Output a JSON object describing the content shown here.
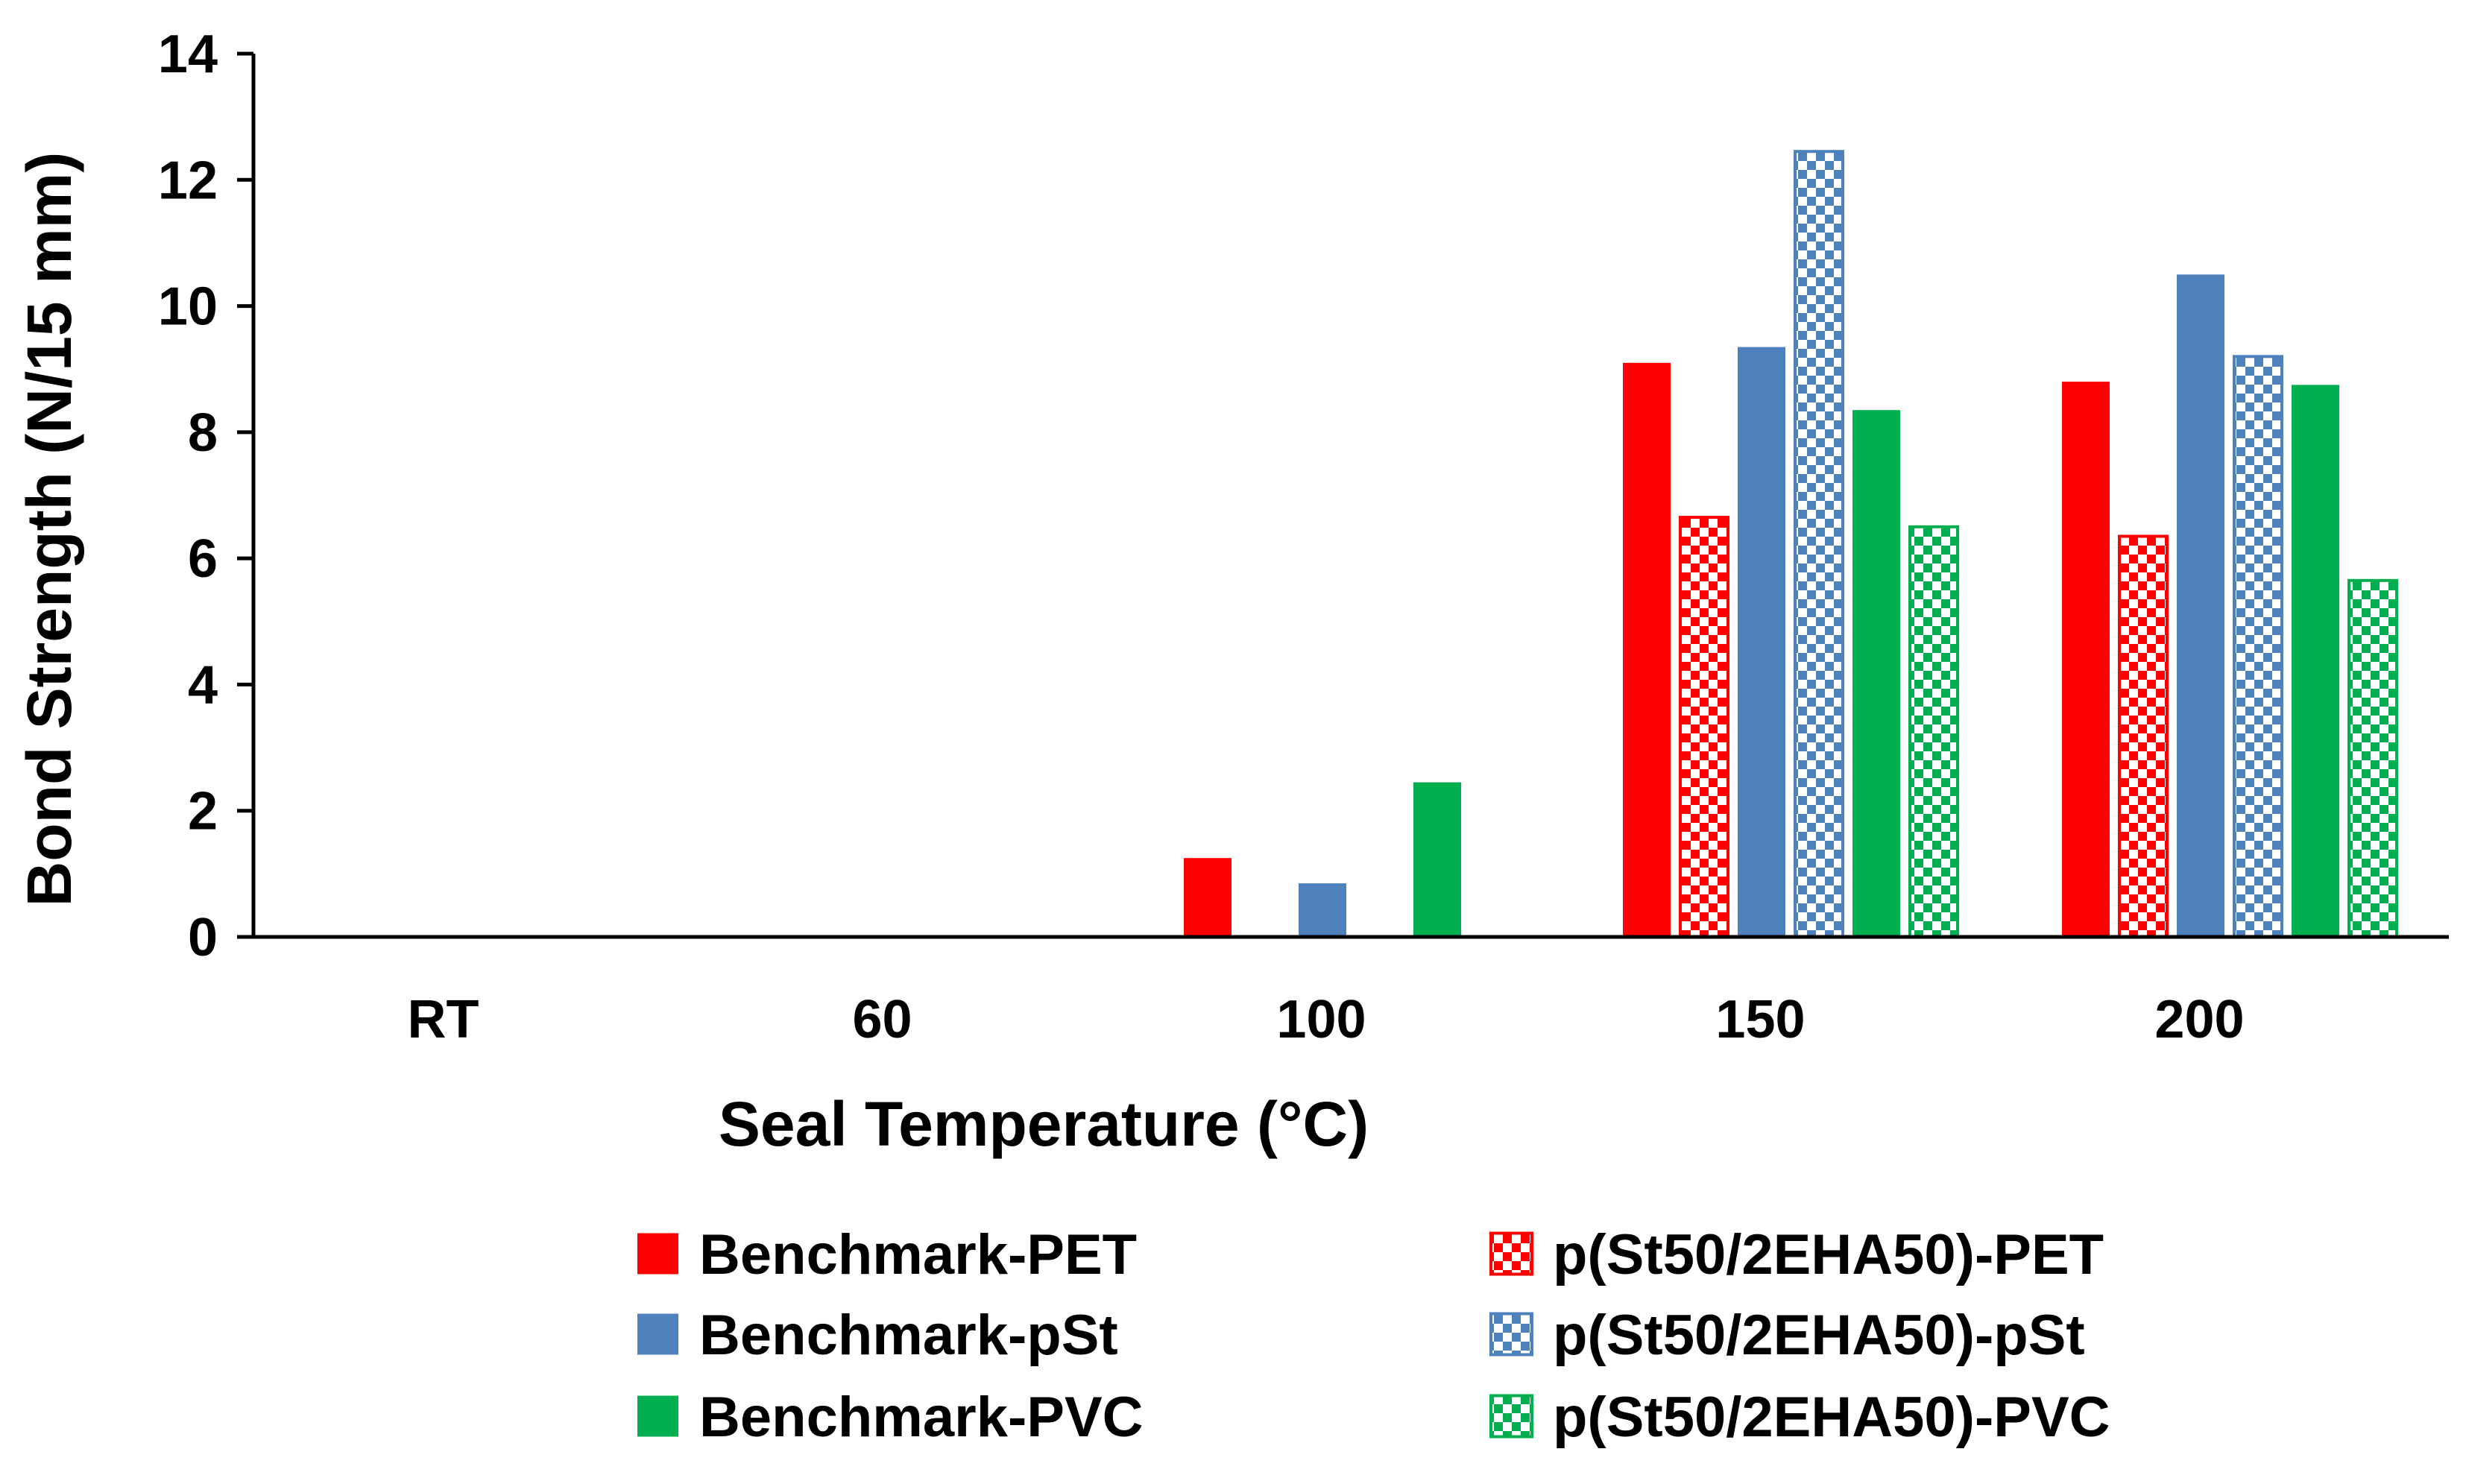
{
  "chart_data": {
    "type": "bar",
    "title": "",
    "xlabel": "Seal Temperature (°C)",
    "ylabel": "Bond Strength (N/15 mm)",
    "ylim": [
      0,
      14
    ],
    "yticks": [
      "0",
      "2",
      "4",
      "6",
      "8",
      "10",
      "12",
      "14"
    ],
    "categories": [
      "RT",
      "60",
      "100",
      "150",
      "200"
    ],
    "grid": false,
    "legend_position": "bottom",
    "series": [
      {
        "name": "Benchmark-PET",
        "color": "#ff0000",
        "pattern": "solid",
        "values": [
          0,
          0,
          1.25,
          9.1,
          8.8
        ]
      },
      {
        "name": "p(St50/2EHA50)-PET",
        "color": "#ff0000",
        "pattern": "checker",
        "values": [
          0,
          0,
          0,
          6.65,
          6.35
        ]
      },
      {
        "name": "Benchmark-pSt",
        "color": "#4f81bd",
        "pattern": "solid",
        "values": [
          0,
          0,
          0.85,
          9.35,
          10.5
        ]
      },
      {
        "name": "p(St50/2EHA50)-pSt",
        "color": "#4f81bd",
        "pattern": "checker",
        "values": [
          0,
          0,
          0,
          12.45,
          9.2
        ]
      },
      {
        "name": "Benchmark-PVC",
        "color": "#00b050",
        "pattern": "solid",
        "values": [
          0,
          0,
          2.45,
          8.35,
          8.75
        ]
      },
      {
        "name": "p(St50/2EHA50)-PVC",
        "color": "#00b050",
        "pattern": "checker",
        "values": [
          0,
          0,
          0,
          6.5,
          5.65
        ]
      }
    ]
  }
}
